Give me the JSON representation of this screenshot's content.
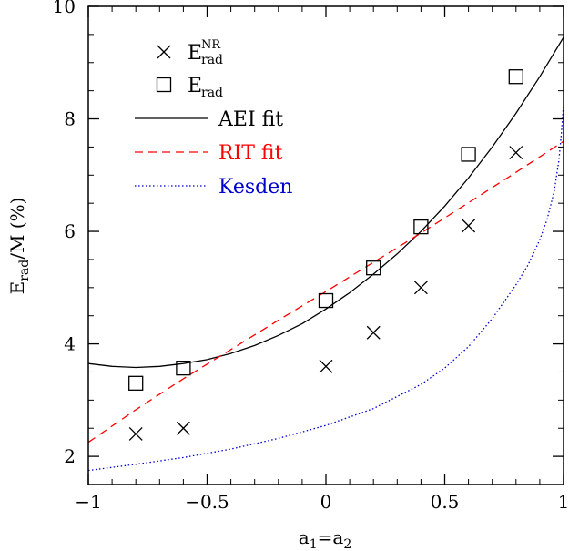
{
  "chart_data": {
    "type": "scatter",
    "xlabel": {
      "main": "a",
      "sub1": "1",
      "eq": "=a",
      "sub2": "2"
    },
    "ylabel": {
      "main": "E",
      "sub": "rad",
      "rest": "/M (%)"
    },
    "xlim": [
      -1,
      1
    ],
    "ylim": [
      1.5,
      10
    ],
    "x_ticks": [
      {
        "value": -1,
        "label": "−1"
      },
      {
        "value": -0.5,
        "label": "−0.5"
      },
      {
        "value": 0,
        "label": "0"
      },
      {
        "value": 0.5,
        "label": "0.5"
      },
      {
        "value": 1,
        "label": "1"
      }
    ],
    "y_ticks": [
      {
        "value": 2,
        "label": "2"
      },
      {
        "value": 4,
        "label": "4"
      },
      {
        "value": 6,
        "label": "6"
      },
      {
        "value": 8,
        "label": "8"
      },
      {
        "value": 10,
        "label": "10"
      }
    ],
    "grid": false,
    "legend_position": "top-left",
    "point_series": [
      {
        "id": "enr",
        "marker": "cross",
        "color": "#000000",
        "label": {
          "main": "E",
          "sup": "NR",
          "sub": "rad"
        },
        "points": [
          {
            "x": -0.8,
            "y": 2.4
          },
          {
            "x": -0.6,
            "y": 2.5
          },
          {
            "x": 0.0,
            "y": 3.6
          },
          {
            "x": 0.2,
            "y": 4.2
          },
          {
            "x": 0.4,
            "y": 5.0
          },
          {
            "x": 0.6,
            "y": 6.1
          },
          {
            "x": 0.8,
            "y": 7.4
          }
        ]
      },
      {
        "id": "erad",
        "marker": "square",
        "color": "#000000",
        "label": {
          "main": "E",
          "sub": "rad"
        },
        "points": [
          {
            "x": -0.8,
            "y": 3.3
          },
          {
            "x": -0.6,
            "y": 3.57
          },
          {
            "x": 0.0,
            "y": 4.77
          },
          {
            "x": 0.2,
            "y": 5.35
          },
          {
            "x": 0.4,
            "y": 6.08
          },
          {
            "x": 0.6,
            "y": 7.37
          },
          {
            "x": 0.8,
            "y": 8.75
          }
        ]
      }
    ],
    "line_series": [
      {
        "id": "aei",
        "label": "AEI fit",
        "color": "#000000",
        "style": "solid",
        "points": [
          {
            "x": -1.0,
            "y": 3.65
          },
          {
            "x": -0.9,
            "y": 3.6
          },
          {
            "x": -0.8,
            "y": 3.58
          },
          {
            "x": -0.7,
            "y": 3.6
          },
          {
            "x": -0.6,
            "y": 3.65
          },
          {
            "x": -0.5,
            "y": 3.72
          },
          {
            "x": -0.4,
            "y": 3.83
          },
          {
            "x": -0.3,
            "y": 3.97
          },
          {
            "x": -0.2,
            "y": 4.15
          },
          {
            "x": -0.1,
            "y": 4.36
          },
          {
            "x": 0.0,
            "y": 4.62
          },
          {
            "x": 0.1,
            "y": 4.91
          },
          {
            "x": 0.2,
            "y": 5.24
          },
          {
            "x": 0.3,
            "y": 5.6
          },
          {
            "x": 0.4,
            "y": 6.0
          },
          {
            "x": 0.5,
            "y": 6.45
          },
          {
            "x": 0.6,
            "y": 6.95
          },
          {
            "x": 0.7,
            "y": 7.5
          },
          {
            "x": 0.8,
            "y": 8.1
          },
          {
            "x": 0.9,
            "y": 8.75
          },
          {
            "x": 1.0,
            "y": 9.45
          }
        ]
      },
      {
        "id": "rit",
        "label": "RIT fit",
        "color": "#ff0000",
        "style": "dashed",
        "points": [
          {
            "x": -1.0,
            "y": 2.25
          },
          {
            "x": -0.8,
            "y": 2.83
          },
          {
            "x": -0.6,
            "y": 3.38
          },
          {
            "x": -0.4,
            "y": 3.9
          },
          {
            "x": -0.2,
            "y": 4.42
          },
          {
            "x": 0.0,
            "y": 4.93
          },
          {
            "x": 0.2,
            "y": 5.45
          },
          {
            "x": 0.4,
            "y": 5.97
          },
          {
            "x": 0.6,
            "y": 6.51
          },
          {
            "x": 0.8,
            "y": 7.05
          },
          {
            "x": 1.0,
            "y": 7.6
          }
        ]
      },
      {
        "id": "kesden",
        "label": "Kesden",
        "color": "#0000cc",
        "style": "dotted",
        "points": [
          {
            "x": -1.0,
            "y": 1.75
          },
          {
            "x": -0.8,
            "y": 1.86
          },
          {
            "x": -0.6,
            "y": 1.98
          },
          {
            "x": -0.4,
            "y": 2.13
          },
          {
            "x": -0.2,
            "y": 2.32
          },
          {
            "x": 0.0,
            "y": 2.55
          },
          {
            "x": 0.2,
            "y": 2.85
          },
          {
            "x": 0.4,
            "y": 3.28
          },
          {
            "x": 0.5,
            "y": 3.57
          },
          {
            "x": 0.6,
            "y": 3.95
          },
          {
            "x": 0.7,
            "y": 4.45
          },
          {
            "x": 0.8,
            "y": 5.05
          },
          {
            "x": 0.85,
            "y": 5.4
          },
          {
            "x": 0.9,
            "y": 5.85
          },
          {
            "x": 0.93,
            "y": 6.2
          },
          {
            "x": 0.96,
            "y": 6.7
          },
          {
            "x": 0.98,
            "y": 7.25
          },
          {
            "x": 0.99,
            "y": 7.7
          },
          {
            "x": 1.0,
            "y": 8.25
          }
        ]
      }
    ]
  }
}
